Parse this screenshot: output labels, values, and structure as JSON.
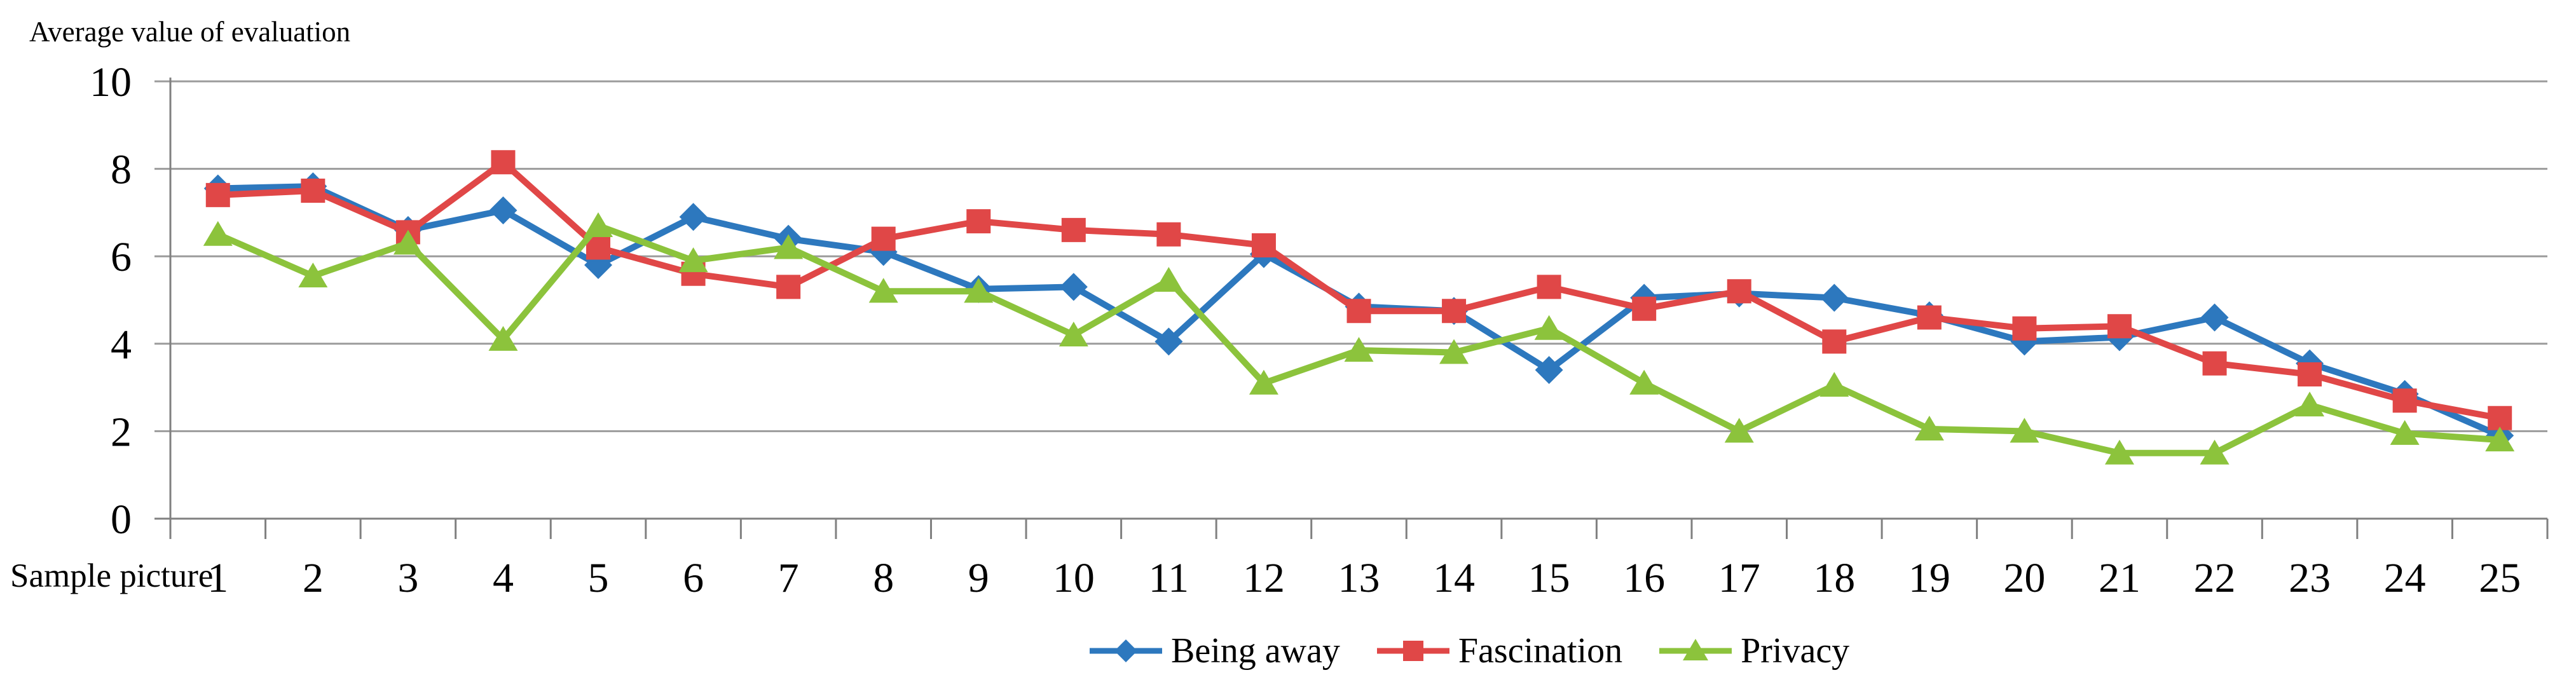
{
  "title": "Average value of evaluation",
  "x_axis_title": "Sample picture",
  "colors": {
    "being_away": "#2D78BE",
    "fascination": "#E04747",
    "privacy": "#8CC33C",
    "grid": "#9B9B9B",
    "axis": "#808080",
    "text": "#000000",
    "background": "#FFFFFF"
  },
  "chart_data": {
    "type": "line",
    "title": "Average value of evaluation",
    "xlabel": "Sample picture",
    "ylabel": "",
    "x": [
      1,
      2,
      3,
      4,
      5,
      6,
      7,
      8,
      9,
      10,
      11,
      12,
      13,
      14,
      15,
      16,
      17,
      18,
      19,
      20,
      21,
      22,
      23,
      24,
      25
    ],
    "ylim": [
      0,
      10
    ],
    "yticks": [
      0,
      2,
      4,
      6,
      8,
      10
    ],
    "grid": true,
    "legend_position": "bottom",
    "series": [
      {
        "name": "Being away",
        "marker": "diamond",
        "color": "#2D78BE",
        "values": [
          7.55,
          7.6,
          6.6,
          7.05,
          5.8,
          6.9,
          6.4,
          6.1,
          5.25,
          5.3,
          4.05,
          6.05,
          4.85,
          4.75,
          3.4,
          5.05,
          5.15,
          5.05,
          4.65,
          4.05,
          4.15,
          4.6,
          3.55,
          2.85,
          1.9
        ]
      },
      {
        "name": "Fascination",
        "marker": "square",
        "color": "#E04747",
        "values": [
          7.4,
          7.5,
          6.55,
          8.15,
          6.2,
          5.6,
          5.3,
          6.4,
          6.8,
          6.6,
          6.5,
          6.25,
          4.75,
          4.75,
          5.3,
          4.8,
          5.2,
          4.05,
          4.6,
          4.35,
          4.4,
          3.55,
          3.3,
          2.7,
          2.3
        ]
      },
      {
        "name": "Privacy",
        "marker": "triangle",
        "color": "#8CC33C",
        "values": [
          6.5,
          5.55,
          6.3,
          4.1,
          6.7,
          5.9,
          6.2,
          5.2,
          5.2,
          4.2,
          5.45,
          3.1,
          3.85,
          3.8,
          4.35,
          3.1,
          2.0,
          3.05,
          2.05,
          2.0,
          1.5,
          1.5,
          2.6,
          1.95,
          1.8
        ]
      }
    ]
  }
}
